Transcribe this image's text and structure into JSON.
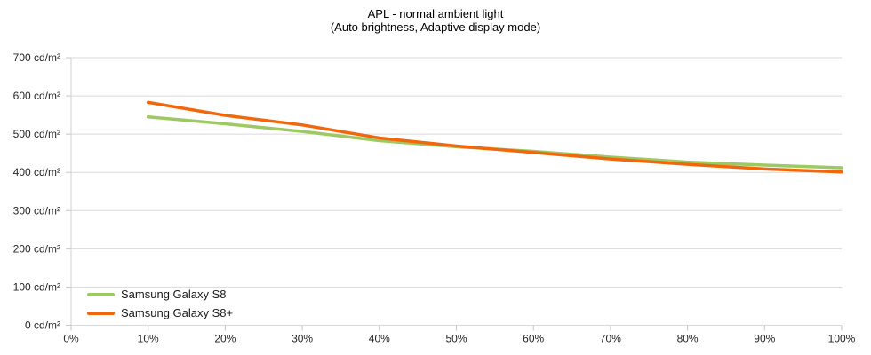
{
  "chart_data": {
    "type": "line",
    "title": "APL - normal ambient light",
    "subtitle": "(Auto brightness, Adaptive display mode)",
    "xlabel": "",
    "ylabel": "",
    "xlim": [
      0,
      100
    ],
    "ylim": [
      0,
      700
    ],
    "grid": "horizontal",
    "legend_position": "bottom-left-inside",
    "x_tick_values": [
      0,
      10,
      20,
      30,
      40,
      50,
      60,
      70,
      80,
      90,
      100
    ],
    "x_tick_labels": [
      "0%",
      "10%",
      "20%",
      "30%",
      "40%",
      "50%",
      "60%",
      "70%",
      "80%",
      "90%",
      "100%"
    ],
    "y_tick_values": [
      0,
      100,
      200,
      300,
      400,
      500,
      600,
      700
    ],
    "y_tick_labels": [
      "0 cd/m²",
      "100 cd/m²",
      "200 cd/m²",
      "300 cd/m²",
      "400 cd/m²",
      "500 cd/m²",
      "600 cd/m²",
      "700 cd/m²"
    ],
    "x": [
      10,
      20,
      30,
      40,
      50,
      60,
      70,
      80,
      90,
      100
    ],
    "series": [
      {
        "name": "Samsung Galaxy S8",
        "color": "#9DC962",
        "values": [
          545,
          527,
          507,
          483,
          467,
          455,
          440,
          427,
          419,
          412
        ]
      },
      {
        "name": "Samsung Galaxy S8+",
        "color": "#F2670B",
        "values": [
          583,
          549,
          524,
          490,
          469,
          452,
          435,
          421,
          409,
          401
        ]
      }
    ],
    "colors": {
      "background": "#FFFFFF",
      "gridline": "#D9D9D9",
      "axis": "#D0D0D0",
      "tick": "#C6C6C6",
      "text": "#262626"
    }
  }
}
